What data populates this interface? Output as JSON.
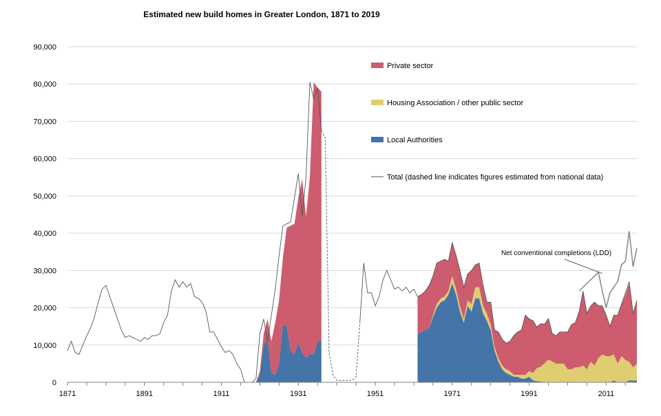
{
  "chart_data": {
    "type": "area",
    "title": "Estimated new build homes in Greater London, 1871 to 2019",
    "xlabel": "",
    "ylabel": "",
    "xlim": [
      1871,
      2019
    ],
    "ylim": [
      0,
      90000
    ],
    "x_ticks": [
      "1871",
      "1891",
      "1911",
      "1931",
      "1951",
      "1971",
      "1991",
      "2011"
    ],
    "y_ticks": [
      "0",
      "10,000",
      "20,000",
      "30,000",
      "40,000",
      "50,000",
      "60,000",
      "70,000",
      "80,000",
      "90,000"
    ],
    "grid": "horizontal",
    "legend_position": "upper-right",
    "colors": {
      "private": "#cd5c6e",
      "housing_association": "#dfcd72",
      "local_authorities": "#4474a8",
      "total": "#555555",
      "ldd": "#8c8c8c"
    },
    "legend": [
      {
        "key": "private",
        "label": "Private sector"
      },
      {
        "key": "housing_association",
        "label": "Housing Association / other public sector"
      },
      {
        "key": "local_authorities",
        "label": "Local Authorities"
      },
      {
        "key": "total",
        "label": "Total (dashed line indicates figures estimated from national data)"
      }
    ],
    "annotations": [
      {
        "text": "Net conventional completions (LDD)",
        "x": 2005,
        "y": 34000,
        "target_x": 2010,
        "target_y": 29000
      }
    ],
    "stacked_segments": [
      {
        "x": [
          1920,
          1921,
          1922,
          1923,
          1924,
          1925,
          1926,
          1927,
          1928,
          1929,
          1930,
          1931,
          1932,
          1933,
          1934,
          1935,
          1936,
          1937
        ],
        "local_authorities": [
          0,
          2000,
          10000,
          11500,
          2500,
          2000,
          5000,
          15500,
          15000,
          8500,
          7500,
          10500,
          8000,
          6500,
          7500,
          7500,
          11000,
          11000
        ],
        "housing_association": [
          0,
          0,
          0,
          0,
          0,
          0,
          0,
          0,
          0,
          0,
          0,
          0,
          0,
          0,
          0,
          0,
          0,
          0
        ],
        "private": [
          0,
          1000,
          3000,
          5500,
          8500,
          14000,
          17000,
          18000,
          26500,
          33500,
          35000,
          39000,
          46500,
          38000,
          47500,
          73000,
          68000,
          67000
        ]
      },
      {
        "x": [
          1962,
          1963,
          1964,
          1965,
          1966,
          1967,
          1968,
          1969,
          1970,
          1971,
          1972,
          1973,
          1974,
          1975,
          1976,
          1977,
          1978,
          1979,
          1980,
          1981,
          1982,
          1983,
          1984,
          1985,
          1986,
          1987,
          1988,
          1989,
          1990,
          1991,
          1992,
          1993,
          1994,
          1995,
          1996,
          1997,
          1998,
          1999,
          2000,
          2001,
          2002,
          2003,
          2004,
          2005,
          2006,
          2007,
          2008,
          2009,
          2010,
          2011,
          2012,
          2013,
          2014,
          2015,
          2016,
          2017,
          2018,
          2019
        ],
        "local_authorities": [
          13000,
          13500,
          14000,
          14500,
          17500,
          20000,
          21500,
          22000,
          23500,
          26500,
          23500,
          19000,
          16000,
          20500,
          19000,
          22500,
          22500,
          18500,
          16500,
          14000,
          8500,
          5500,
          3500,
          2500,
          2000,
          1500,
          1500,
          1000,
          1000,
          1500,
          500,
          300,
          200,
          100,
          100,
          100,
          0,
          0,
          0,
          0,
          0,
          0,
          0,
          0,
          0,
          0,
          0,
          0,
          0,
          0,
          0,
          500,
          0,
          0,
          0,
          500,
          500,
          500
        ],
        "housing_association": [
          0,
          0,
          0,
          0,
          500,
          1000,
          1000,
          1000,
          1000,
          2000,
          1500,
          1500,
          1000,
          1500,
          2000,
          3000,
          3000,
          2000,
          2000,
          1500,
          1000,
          1000,
          1000,
          1000,
          1000,
          500,
          500,
          1000,
          1000,
          1500,
          2000,
          3500,
          4000,
          5000,
          6000,
          5500,
          5000,
          5000,
          5000,
          3500,
          3500,
          4000,
          4000,
          4500,
          3500,
          5500,
          4500,
          6500,
          7500,
          7000,
          7000,
          7000,
          5000,
          7000,
          6000,
          5000,
          3500,
          4500
        ],
        "private": [
          10000,
          10000,
          10500,
          11500,
          10500,
          11000,
          10000,
          10000,
          8000,
          9000,
          9000,
          9500,
          8500,
          7000,
          9000,
          6000,
          6500,
          5500,
          3000,
          6000,
          4500,
          7000,
          7000,
          7000,
          8000,
          10500,
          11500,
          12000,
          16000,
          14000,
          14000,
          11000,
          11500,
          10500,
          11000,
          7500,
          7500,
          8500,
          8500,
          10000,
          12000,
          12000,
          15000,
          20000,
          15000,
          15000,
          17000,
          14000,
          13000,
          11000,
          8000,
          10500,
          13000,
          14000,
          17500,
          21000,
          14500,
          17000
        ]
      }
    ],
    "total_series": [
      {
        "style": "solid",
        "x": [
          1871,
          1872,
          1873,
          1874,
          1875,
          1876,
          1877,
          1878,
          1879,
          1880,
          1881,
          1882,
          1883,
          1884,
          1885,
          1886,
          1887,
          1888,
          1889,
          1890,
          1891,
          1892,
          1893,
          1894,
          1895,
          1896,
          1897,
          1898,
          1899,
          1900,
          1901,
          1902,
          1903,
          1904,
          1905,
          1906,
          1907,
          1908,
          1909,
          1910,
          1911,
          1912,
          1913,
          1914,
          1915,
          1916,
          1917,
          1918,
          1919,
          1920,
          1921,
          1922,
          1923,
          1924,
          1925,
          1926,
          1927,
          1928,
          1929,
          1930,
          1931,
          1932,
          1933,
          1934,
          1935,
          1936,
          1937
        ],
        "y": [
          8500,
          11000,
          8000,
          7500,
          10000,
          12500,
          14500,
          17500,
          21500,
          25000,
          26000,
          23000,
          20000,
          17000,
          14000,
          12000,
          12500,
          12000,
          11500,
          11000,
          12000,
          11500,
          12500,
          12500,
          13000,
          16000,
          18000,
          24500,
          27500,
          25500,
          27000,
          25500,
          26500,
          23000,
          22500,
          21500,
          19000,
          13500,
          13500,
          11500,
          9500,
          8000,
          8500,
          7500,
          5000,
          3500,
          0,
          0,
          0,
          1000,
          13000,
          17000,
          11000,
          18000,
          25000,
          34000,
          42000,
          42500,
          43000,
          49500,
          56000,
          44500,
          55000,
          80500,
          76000,
          79000,
          67500
        ]
      },
      {
        "style": "dashed",
        "x": [
          1937,
          1938,
          1939,
          1940,
          1941,
          1942,
          1943,
          1944,
          1945,
          1946,
          1947
        ],
        "y": [
          67500,
          65500,
          8000,
          2000,
          500,
          500,
          500,
          500,
          500,
          1500,
          16000
        ]
      },
      {
        "style": "solid",
        "x": [
          1947,
          1948,
          1949,
          1950,
          1951,
          1952,
          1953,
          1954,
          1955,
          1956,
          1957,
          1958,
          1959,
          1960,
          1961,
          1962
        ],
        "y": [
          16000,
          32000,
          24000,
          24000,
          20500,
          23000,
          27500,
          30000,
          27500,
          25000,
          25500,
          24500,
          25500,
          24000,
          25000,
          23000
        ]
      },
      {
        "style": "solid",
        "x": [
          1962,
          1963,
          1964,
          1965,
          1966,
          1967,
          1968,
          1969,
          1970,
          1971,
          1972,
          1973,
          1974,
          1975,
          1976,
          1977,
          1978,
          1979,
          1980,
          1981,
          1982,
          1983,
          1984,
          1985,
          1986,
          1987,
          1988,
          1989,
          1990,
          1991,
          1992,
          1993,
          1994,
          1995,
          1996,
          1997,
          1998,
          1999,
          2000,
          2001,
          2002,
          2003,
          2004,
          2005,
          2006,
          2007,
          2008,
          2009,
          2010,
          2011,
          2012,
          2013,
          2014,
          2015,
          2016,
          2017,
          2018,
          2019
        ],
        "y": [
          23000,
          23500,
          24500,
          26000,
          28500,
          32000,
          32500,
          33000,
          32500,
          37500,
          34000,
          30000,
          25500,
          29000,
          30000,
          31500,
          32000,
          26000,
          21500,
          21500,
          14000,
          13500,
          11500,
          10500,
          11000,
          12500,
          13500,
          14000,
          18000,
          17000,
          16500,
          14800,
          15700,
          15600,
          17100,
          13100,
          12500,
          13500,
          13500,
          13500,
          15500,
          16000,
          19000,
          24500,
          18500,
          20500,
          21500,
          20500,
          20500,
          18000,
          15000,
          18000,
          18000,
          21000,
          24000,
          27000,
          18500,
          22000
        ]
      }
    ],
    "ldd_series": {
      "x": [
        2004,
        2005,
        2006,
        2007,
        2008,
        2009,
        2010,
        2011,
        2012,
        2013,
        2014,
        2015,
        2016,
        2017,
        2018,
        2019
      ],
      "y": [
        24500,
        25500,
        26500,
        27500,
        28500,
        29500,
        24500,
        20000,
        24000,
        25500,
        27000,
        31500,
        32500,
        40500,
        31000,
        36000
      ]
    }
  }
}
